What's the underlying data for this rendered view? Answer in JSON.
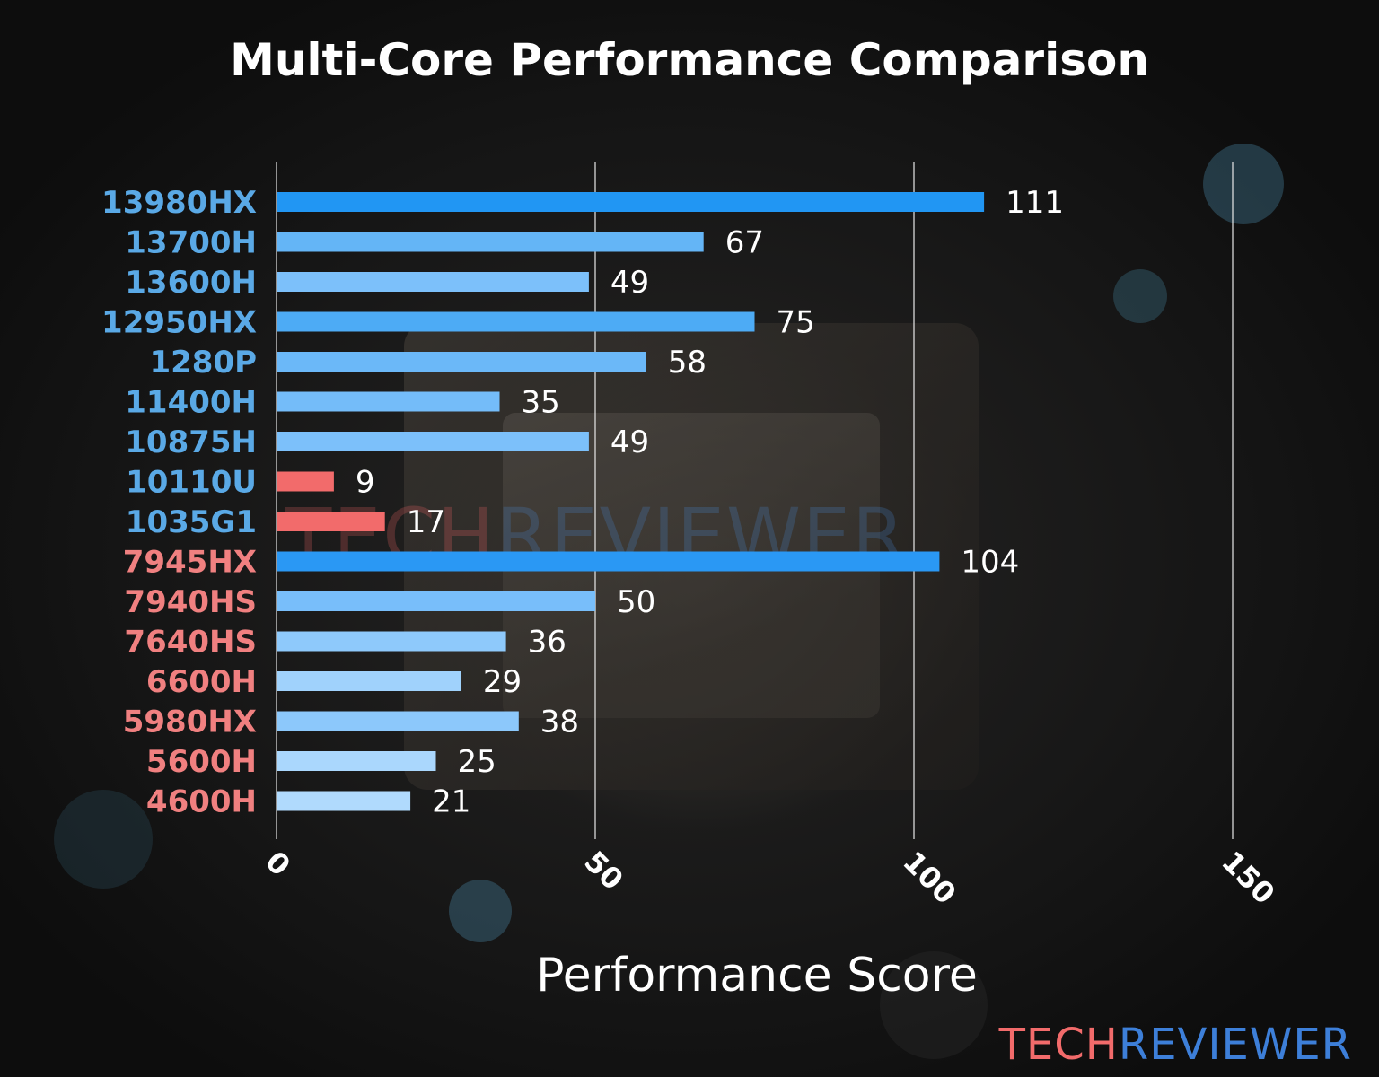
{
  "chart_data": {
    "type": "bar",
    "orientation": "horizontal",
    "title": "Multi-Core Performance Comparison",
    "xlabel": "Performance Score",
    "ylabel": "",
    "xlim": [
      0,
      150
    ],
    "xticks": [
      0,
      50,
      100,
      150
    ],
    "grid": true,
    "categories": [
      "13980HX",
      "13700H",
      "13600H",
      "12950HX",
      "1280P",
      "11400H",
      "10875H",
      "10110U",
      "1035G1",
      "7945HX",
      "7940HS",
      "7640HS",
      "6600H",
      "5980HX",
      "5600H",
      "4600H"
    ],
    "values": [
      111,
      67,
      49,
      75,
      58,
      35,
      49,
      9,
      17,
      104,
      50,
      36,
      29,
      38,
      25,
      21
    ],
    "category_label_colors": [
      "#5aa9e6",
      "#5aa9e6",
      "#5aa9e6",
      "#5aa9e6",
      "#5aa9e6",
      "#5aa9e6",
      "#5aa9e6",
      "#5aa9e6",
      "#5aa9e6",
      "#f08080",
      "#f08080",
      "#f08080",
      "#f08080",
      "#f08080",
      "#f08080",
      "#f08080"
    ],
    "bar_colors": [
      "#2196f3",
      "#64b5f6",
      "#7cc0fa",
      "#4dabf5",
      "#6bb8f8",
      "#74bcf9",
      "#7cc0fa",
      "#f26b6b",
      "#f26b6b",
      "#2a98f4",
      "#78befa",
      "#8ec9fb",
      "#a0d2fc",
      "#8cc8fb",
      "#aad7fd",
      "#b0dafd"
    ]
  },
  "watermark": {
    "part1": "TECH",
    "part2": "REVIEWER"
  },
  "brand": {
    "part1": "TECH",
    "part2": "REVIEWER",
    "color1": "#f26b6b",
    "color2": "#3d7fd9"
  }
}
